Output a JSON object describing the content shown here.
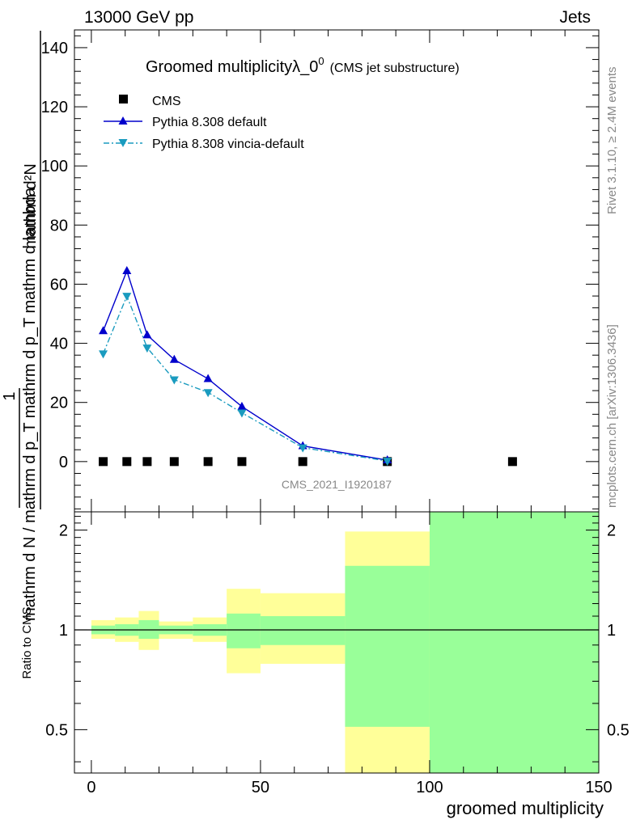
{
  "header": {
    "left": "13000 GeV pp",
    "right": "Jets"
  },
  "side": {
    "rivet": "Rivet 3.1.10, ≥ 2.4M events",
    "mcplots": "mcplots.cern.ch [arXiv:1306.3436]"
  },
  "chart_data": {
    "type": "line",
    "title": {
      "main": "Groomed multiplicityλ_0",
      "sup": "0",
      "sub": "(CMS jet substructure)"
    },
    "analysis_tag": "CMS_2021_I1920187",
    "ylabel": {
      "numerator": "mathrm d²N",
      "denominator": "mathrm d N / mathrm d p_T mathrm d p_T mathrm d lambda",
      "factor": "1"
    },
    "xlabel": "groomed multiplicity",
    "xlim": [
      -5,
      150
    ],
    "ylim": [
      -17,
      146
    ],
    "x_ticks": [
      0,
      50,
      100,
      150
    ],
    "y_ticks": [
      0,
      20,
      40,
      60,
      80,
      100,
      120,
      140
    ],
    "legend_position": "top-left",
    "series": [
      {
        "name": "CMS",
        "style": "markers",
        "color": "#000000",
        "x": [
          3.5,
          10.5,
          16.5,
          24.5,
          34.5,
          44.5,
          62.5,
          87.5,
          124.5
        ],
        "y": [
          0,
          0,
          0,
          0,
          0,
          0,
          0,
          0,
          0
        ]
      },
      {
        "name": "Pythia 8.308 default",
        "style": "line-up-triangle",
        "color": "#0000cc",
        "x": [
          3.5,
          10.5,
          16.5,
          24.5,
          34.5,
          44.5,
          62.5,
          87.5
        ],
        "y": [
          44.2,
          64.5,
          42.8,
          34.5,
          28.0,
          18.6,
          5.3,
          0.5
        ]
      },
      {
        "name": "Pythia 8.308 vincia-default",
        "style": "dashdot-down-triangle",
        "color": "#1a9bbf",
        "x": [
          3.5,
          10.5,
          16.5,
          24.5,
          34.5,
          44.5,
          62.5,
          87.5
        ],
        "y": [
          36.5,
          56.0,
          38.5,
          27.7,
          23.4,
          16.5,
          4.7,
          0.2
        ]
      }
    ],
    "ratio": {
      "ylabel": "Ratio to CMS",
      "ylim": [
        0.37,
        2.27
      ],
      "log_scale": true,
      "y_ticks": [
        0.5,
        1,
        2
      ],
      "y_tick_labels": [
        "0.5",
        "1",
        "2"
      ],
      "bins": [
        {
          "lo": 0,
          "hi": 7,
          "stat_lo": 0.97,
          "stat_hi": 1.03,
          "tot_lo": 0.94,
          "tot_hi": 1.07
        },
        {
          "lo": 7,
          "hi": 14,
          "stat_lo": 0.96,
          "stat_hi": 1.04,
          "tot_lo": 0.92,
          "tot_hi": 1.09
        },
        {
          "lo": 14,
          "hi": 20,
          "stat_lo": 0.94,
          "stat_hi": 1.07,
          "tot_lo": 0.87,
          "tot_hi": 1.14
        },
        {
          "lo": 20,
          "hi": 30,
          "stat_lo": 0.97,
          "stat_hi": 1.03,
          "tot_lo": 0.94,
          "tot_hi": 1.06
        },
        {
          "lo": 30,
          "hi": 40,
          "stat_lo": 0.96,
          "stat_hi": 1.04,
          "tot_lo": 0.92,
          "tot_hi": 1.09
        },
        {
          "lo": 40,
          "hi": 50,
          "stat_lo": 0.88,
          "stat_hi": 1.12,
          "tot_lo": 0.74,
          "tot_hi": 1.33
        },
        {
          "lo": 50,
          "hi": 75,
          "stat_lo": 0.9,
          "stat_hi": 1.1,
          "tot_lo": 0.79,
          "tot_hi": 1.29
        },
        {
          "lo": 75,
          "hi": 100,
          "stat_lo": 0.51,
          "stat_hi": 1.56,
          "tot_lo": 0.37,
          "tot_hi": 1.98
        },
        {
          "lo": 100,
          "hi": 150,
          "stat_lo": 0.37,
          "stat_hi": 2.27,
          "tot_lo": 0.37,
          "tot_hi": 2.27
        }
      ]
    },
    "colors": {
      "stat_band": "#99ff99",
      "total_band": "#ffff99",
      "side_text": "#888888",
      "tag_text": "#888888"
    }
  }
}
